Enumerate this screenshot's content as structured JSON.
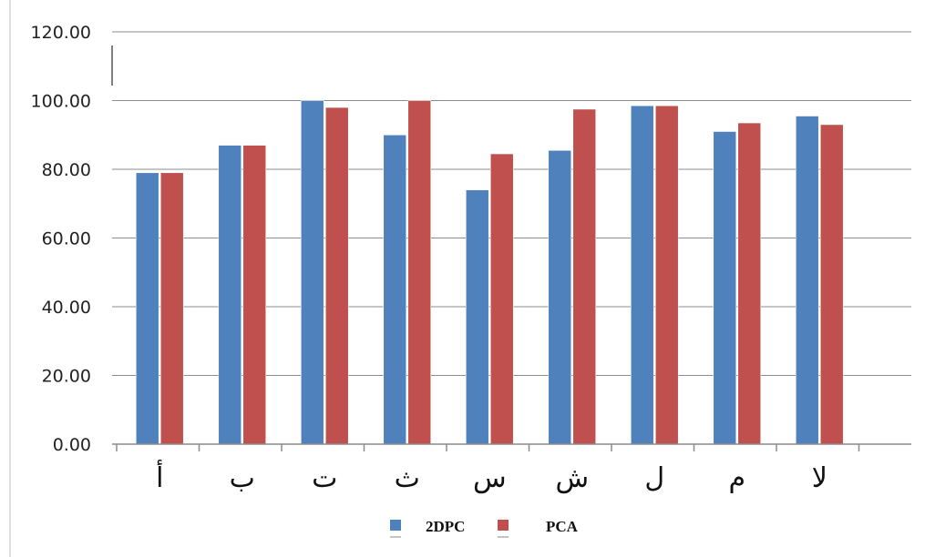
{
  "colors": {
    "series_2dpc": "#4f81bd",
    "series_pca": "#c0504d",
    "gridline": "#8c8c8c",
    "axis": "#8c8c8c",
    "text": "#111111",
    "background": "#ffffff"
  },
  "chart_data": {
    "type": "bar",
    "title": "",
    "xlabel": "",
    "ylabel": "",
    "categories": [
      "أ",
      "ب",
      "ت",
      "ث",
      "س",
      "ش",
      "ل",
      "م",
      "لا"
    ],
    "series": [
      {
        "name": "2DPC",
        "values": [
          79,
          87,
          100,
          90,
          74,
          85.5,
          98.5,
          91,
          95.5
        ]
      },
      {
        "name": "PCA",
        "values": [
          79,
          87,
          98,
          100,
          84.5,
          97.5,
          98.5,
          93.5,
          93
        ]
      }
    ],
    "ylim": [
      0,
      120
    ],
    "y_ticks": [
      "0.00",
      "20.00",
      "40.00",
      "60.00",
      "80.00",
      "100.00",
      "120.00"
    ],
    "grid": true,
    "legend_placement": "bottom-center"
  }
}
